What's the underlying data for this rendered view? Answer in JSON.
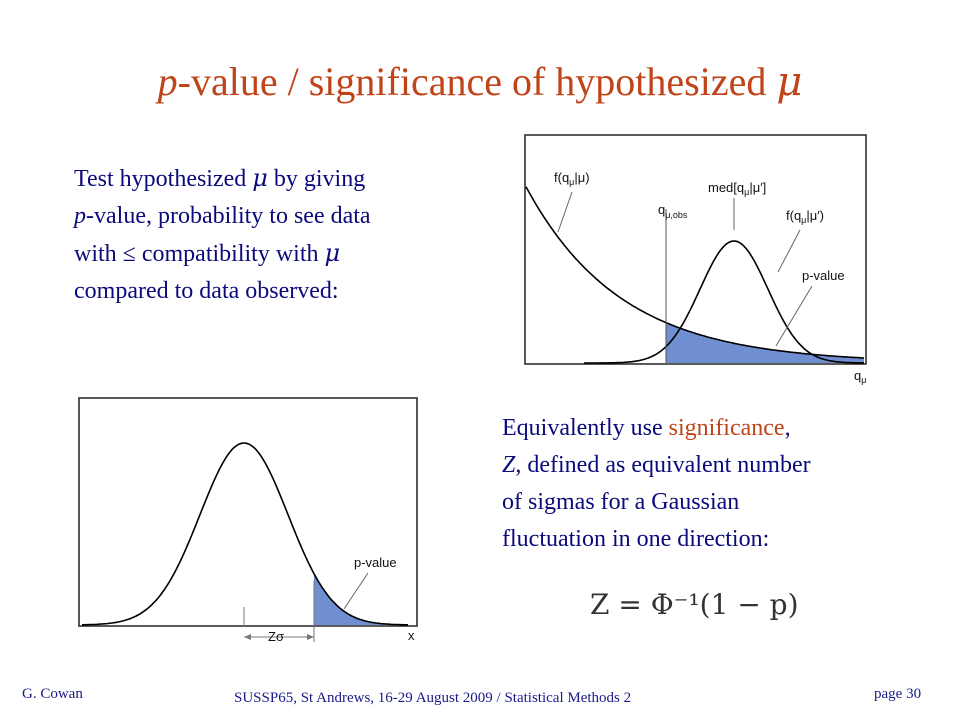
{
  "slide": {
    "title_p": "p",
    "title_rest": "-value / significance of hypothesized ",
    "title_mu": "μ"
  },
  "text1": {
    "l1a": "Test hypothesized ",
    "l1mu": "μ",
    "l1b": " by giving",
    "l2p": "p",
    "l2b": "-value, probability to see data",
    "l3a": "with ≤ compatibility with ",
    "l3mu": "μ",
    "l4": "compared to data observed:"
  },
  "text2": {
    "l1a": "Equivalently use ",
    "l1hl": "significance",
    "l1b": ",",
    "l2z": "Z",
    "l2b": ", defined as equivalent number",
    "l3": "of sigmas for a Gaussian",
    "l4": "fluctuation in one direction:"
  },
  "equation": "Z = Φ⁻¹(1 − p)",
  "plot1": {
    "f_label": "f(q",
    "mu_sub": "μ",
    "f_given": "|μ)",
    "qobs_q": "q",
    "qobs_sub": "μ,obs",
    "med_label": "med[q",
    "med_rest": "|μ′]",
    "f2_label": "f(q",
    "f2_rest": "|μ′)",
    "pvalue": "p-value",
    "axis_q": "q",
    "axis_sub": "μ"
  },
  "plot2": {
    "pvalue": "p-value",
    "zsigma": "Zσ",
    "axis_x": "x"
  },
  "footer": {
    "author": "G. Cowan",
    "center": "SUSSP65, St Andrews, 16-29 August 2009 / Statistical Methods 2",
    "page": "page 30"
  },
  "colors": {
    "title": "#c0441a",
    "text": "#0a0a7a",
    "fill": "#6f8fd0"
  }
}
